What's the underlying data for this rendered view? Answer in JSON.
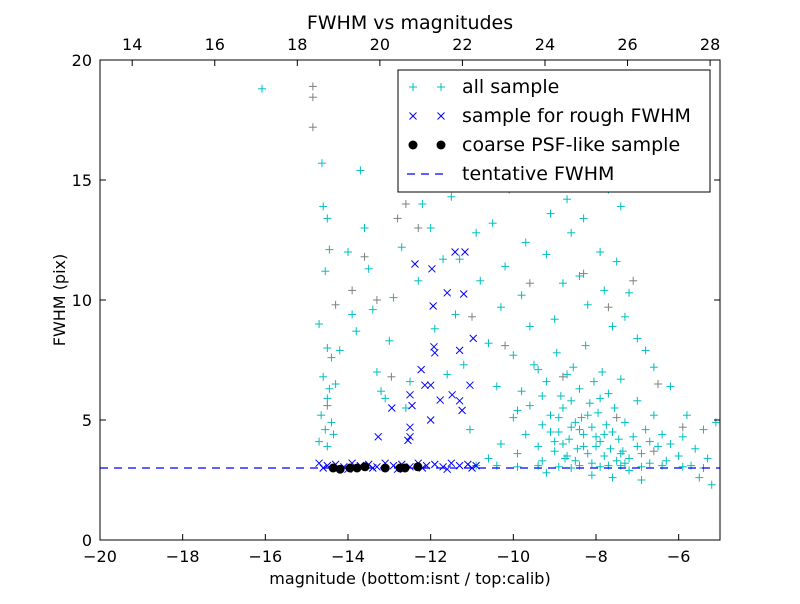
{
  "chart_data": {
    "type": "scatter",
    "title": "FWHM vs magnitudes",
    "xlabel": "magnitude (bottom:isnt / top:calib)",
    "ylabel": "FWHM (pix)",
    "xlim": [
      -20,
      -5
    ],
    "ylim": [
      0,
      20
    ],
    "xticks": [
      -20,
      -18,
      -16,
      -14,
      -12,
      -10,
      -8,
      -6
    ],
    "xtick_labels": [
      "−20",
      "−18",
      "−16",
      "−14",
      "−12",
      "−10",
      "−8",
      "−6"
    ],
    "yticks": [
      0,
      5,
      10,
      15,
      20
    ],
    "ytick_labels": [
      "0",
      "5",
      "10",
      "15",
      "20"
    ],
    "top_xlim": [
      13.22,
      28.24
    ],
    "top_xticks": [
      14,
      16,
      18,
      20,
      22,
      24,
      26,
      28
    ],
    "top_xtick_labels": [
      "14",
      "16",
      "18",
      "20",
      "22",
      "24",
      "26",
      "28"
    ],
    "grid": false,
    "legend_position": "top-right",
    "colors": {
      "all": "#00bfbf",
      "gray": "#808080",
      "rough": "#0000ff",
      "coarse": "#000000",
      "line": "#0000ff"
    },
    "series": [
      {
        "name": "all sample",
        "marker": "+",
        "color": "#00bfbf",
        "points": [
          [
            -16.08,
            18.8
          ],
          [
            -14.63,
            15.7
          ],
          [
            -14.6,
            13.9
          ],
          [
            -14.5,
            13.4
          ],
          [
            -14.45,
            12.1
          ],
          [
            -14.55,
            11.2
          ],
          [
            -14.7,
            9.0
          ],
          [
            -14.5,
            8.0
          ],
          [
            -14.4,
            7.6
          ],
          [
            -14.6,
            6.8
          ],
          [
            -14.45,
            6.3
          ],
          [
            -14.5,
            5.9
          ],
          [
            -14.65,
            5.2
          ],
          [
            -14.4,
            4.9
          ],
          [
            -14.55,
            4.6
          ],
          [
            -14.7,
            4.1
          ],
          [
            -14.5,
            3.9
          ],
          [
            -14.35,
            4.4
          ],
          [
            -14.3,
            6.5
          ],
          [
            -14.2,
            7.9
          ],
          [
            -14.0,
            12.0
          ],
          [
            -13.9,
            9.4
          ],
          [
            -13.8,
            8.7
          ],
          [
            -13.7,
            15.4
          ],
          [
            -13.6,
            13.0
          ],
          [
            -13.5,
            11.3
          ],
          [
            -13.4,
            9.6
          ],
          [
            -13.3,
            7.0
          ],
          [
            -13.2,
            6.2
          ],
          [
            -13.1,
            5.9
          ],
          [
            -13.0,
            8.3
          ],
          [
            -12.9,
            10.1
          ],
          [
            -12.7,
            12.2
          ],
          [
            -12.6,
            5.5
          ],
          [
            -12.5,
            6.6
          ],
          [
            -12.3,
            10.8
          ],
          [
            -12.2,
            14.0
          ],
          [
            -12.0,
            13.0
          ],
          [
            -11.9,
            8.8
          ],
          [
            -11.7,
            11.7
          ],
          [
            -11.6,
            6.9
          ],
          [
            -11.5,
            14.3
          ],
          [
            -11.4,
            9.4
          ],
          [
            -11.3,
            11.7
          ],
          [
            -11.2,
            7.3
          ],
          [
            -11.05,
            4.6
          ],
          [
            -10.9,
            12.8
          ],
          [
            -10.8,
            10.8
          ],
          [
            -10.6,
            8.2
          ],
          [
            -10.5,
            13.2
          ],
          [
            -10.4,
            6.4
          ],
          [
            -10.3,
            9.7
          ],
          [
            -10.2,
            11.4
          ],
          [
            -10.1,
            14.6
          ],
          [
            -10.0,
            7.7
          ],
          [
            -9.9,
            5.4
          ],
          [
            -9.8,
            10.2
          ],
          [
            -9.7,
            12.4
          ],
          [
            -9.6,
            8.9
          ],
          [
            -9.5,
            15.8
          ],
          [
            -9.4,
            7.1
          ],
          [
            -9.3,
            6.0
          ],
          [
            -9.2,
            11.9
          ],
          [
            -9.1,
            13.6
          ],
          [
            -9.0,
            9.2
          ],
          [
            -8.9,
            17.5
          ],
          [
            -8.8,
            10.7
          ],
          [
            -8.7,
            14.2
          ],
          [
            -8.6,
            12.8
          ],
          [
            -8.5,
            16.4
          ],
          [
            -8.4,
            11.0
          ],
          [
            -8.3,
            13.4
          ],
          [
            -8.2,
            9.8
          ],
          [
            -8.1,
            15.1
          ],
          [
            -8.0,
            19.4
          ],
          [
            -7.9,
            12.0
          ],
          [
            -7.8,
            10.4
          ],
          [
            -7.7,
            14.6
          ],
          [
            -7.6,
            8.9
          ],
          [
            -7.5,
            11.6
          ],
          [
            -7.4,
            13.9
          ],
          [
            -7.3,
            9.3
          ],
          [
            -7.2,
            10.3
          ],
          [
            -7.0,
            8.4
          ],
          [
            -6.8,
            7.9
          ],
          [
            -6.6,
            7.2
          ],
          [
            -6.2,
            6.4
          ],
          [
            -5.8,
            5.2
          ],
          [
            -5.4,
            4.6
          ],
          [
            -5.1,
            4.9
          ],
          [
            -10.6,
            3.4
          ],
          [
            -10.3,
            4.0
          ],
          [
            -10.0,
            5.1
          ],
          [
            -9.9,
            3.6
          ],
          [
            -9.8,
            6.2
          ],
          [
            -9.7,
            4.4
          ],
          [
            -9.6,
            5.6
          ],
          [
            -9.5,
            7.3
          ],
          [
            -9.4,
            3.9
          ],
          [
            -9.3,
            4.8
          ],
          [
            -9.2,
            6.6
          ],
          [
            -9.1,
            5.2
          ],
          [
            -9.0,
            3.7
          ],
          [
            -8.95,
            7.8
          ],
          [
            -8.9,
            4.5
          ],
          [
            -8.85,
            6.0
          ],
          [
            -8.8,
            5.5
          ],
          [
            -8.75,
            3.4
          ],
          [
            -8.7,
            6.9
          ],
          [
            -8.65,
            4.2
          ],
          [
            -8.6,
            5.8
          ],
          [
            -8.55,
            7.2
          ],
          [
            -8.5,
            4.9
          ],
          [
            -8.45,
            3.8
          ],
          [
            -8.4,
            6.3
          ],
          [
            -8.35,
            5.1
          ],
          [
            -8.3,
            4.4
          ],
          [
            -8.25,
            8.1
          ],
          [
            -8.2,
            3.6
          ],
          [
            -8.15,
            5.7
          ],
          [
            -8.1,
            4.7
          ],
          [
            -8.05,
            6.6
          ],
          [
            -8.0,
            3.9
          ],
          [
            -7.95,
            5.3
          ],
          [
            -7.9,
            4.1
          ],
          [
            -7.85,
            7.0
          ],
          [
            -7.8,
            3.5
          ],
          [
            -7.75,
            4.8
          ],
          [
            -7.7,
            6.1
          ],
          [
            -7.65,
            3.8
          ],
          [
            -7.6,
            4.5
          ],
          [
            -7.55,
            5.5
          ],
          [
            -7.5,
            3.3
          ],
          [
            -7.45,
            4.2
          ],
          [
            -7.4,
            6.7
          ],
          [
            -7.35,
            3.7
          ],
          [
            -7.3,
            4.9
          ],
          [
            -7.2,
            3.4
          ],
          [
            -7.1,
            4.3
          ],
          [
            -7.0,
            5.8
          ],
          [
            -6.9,
            3.6
          ],
          [
            -6.8,
            4.6
          ],
          [
            -6.7,
            3.2
          ],
          [
            -6.6,
            5.2
          ],
          [
            -6.5,
            3.9
          ],
          [
            -6.4,
            4.4
          ],
          [
            -6.3,
            3.3
          ],
          [
            -6.2,
            4.0
          ],
          [
            -6.0,
            3.5
          ],
          [
            -5.9,
            4.3
          ],
          [
            -5.7,
            3.1
          ],
          [
            -5.6,
            3.8
          ],
          [
            -5.5,
            2.6
          ],
          [
            -5.3,
            3.4
          ],
          [
            -5.2,
            2.3
          ],
          [
            -7.6,
            2.6
          ],
          [
            -8.1,
            2.7
          ],
          [
            -6.9,
            2.5
          ],
          [
            -9.2,
            2.8
          ],
          [
            -8.6,
            3.0
          ],
          [
            -7.2,
            2.9
          ],
          [
            -9.3,
            3.3
          ],
          [
            -9.0,
            4.1
          ],
          [
            -8.7,
            3.5
          ],
          [
            -8.4,
            4.6
          ],
          [
            -8.1,
            3.2
          ],
          [
            -7.9,
            5.9
          ],
          [
            -7.7,
            3.1
          ],
          [
            -8.9,
            5.1
          ],
          [
            -8.6,
            4.7
          ],
          [
            -8.3,
            3.9
          ],
          [
            -8.0,
            4.3
          ],
          [
            -7.4,
            3.6
          ],
          [
            -7.0,
            3.9
          ],
          [
            -8.8,
            4.0
          ],
          [
            -8.5,
            3.3
          ],
          [
            -8.2,
            5.2
          ],
          [
            -9.1,
            4.5
          ],
          [
            -7.8,
            4.4
          ],
          [
            -7.3,
            3.2
          ],
          [
            -6.7,
            4.1
          ],
          [
            -10.9,
            3.1
          ],
          [
            -10.4,
            3.1
          ],
          [
            -9.9,
            3.05
          ],
          [
            -9.4,
            3.1
          ],
          [
            -8.9,
            3.05
          ],
          [
            -8.4,
            3.1
          ],
          [
            -7.9,
            3.05
          ],
          [
            -7.4,
            3.1
          ],
          [
            -6.9,
            3.05
          ],
          [
            -6.4,
            3.1
          ],
          [
            -5.9,
            3.05
          ],
          [
            -5.4,
            3.0
          ]
        ]
      },
      {
        "name": "",
        "marker": "+",
        "color": "#808080",
        "points": [
          [
            -14.85,
            18.9
          ],
          [
            -14.85,
            18.45
          ],
          [
            -14.85,
            17.2
          ],
          [
            -13.6,
            11.8
          ],
          [
            -13.3,
            10.0
          ],
          [
            -12.8,
            13.4
          ],
          [
            -12.6,
            14.0
          ],
          [
            -12.3,
            13.0
          ],
          [
            -11.0,
            9.3
          ],
          [
            -10.2,
            8.1
          ],
          [
            -9.6,
            10.7
          ],
          [
            -8.3,
            11.1
          ],
          [
            -7.7,
            9.7
          ],
          [
            -7.1,
            10.8
          ],
          [
            -6.5,
            6.5
          ],
          [
            -8.8,
            6.8
          ],
          [
            -7.5,
            5.1
          ],
          [
            -6.6,
            3.7
          ],
          [
            -5.9,
            4.7
          ],
          [
            -14.5,
            5.6
          ],
          [
            -14.3,
            9.8
          ],
          [
            -13.9,
            10.4
          ],
          [
            -12.95,
            6.8
          ]
        ]
      },
      {
        "name": "sample for rough FWHM",
        "marker": "x",
        "color": "#0000ff",
        "points": [
          [
            -12.38,
            11.5
          ],
          [
            -11.97,
            11.3
          ],
          [
            -11.41,
            12.0
          ],
          [
            -11.17,
            12.0
          ],
          [
            -11.2,
            10.25
          ],
          [
            -11.94,
            9.75
          ],
          [
            -11.6,
            10.3
          ],
          [
            -11.92,
            8.05
          ],
          [
            -11.9,
            7.8
          ],
          [
            -11.3,
            7.9
          ],
          [
            -10.97,
            8.4
          ],
          [
            -12.23,
            7.1
          ],
          [
            -12.14,
            6.45
          ],
          [
            -12.0,
            6.45
          ],
          [
            -12.5,
            6.05
          ],
          [
            -12.45,
            5.6
          ],
          [
            -12.94,
            5.5
          ],
          [
            -13.27,
            4.3
          ],
          [
            -12.5,
            4.7
          ],
          [
            -12.5,
            4.3
          ],
          [
            -12.0,
            5.0
          ],
          [
            -11.77,
            5.83
          ],
          [
            -11.48,
            6.05
          ],
          [
            -11.3,
            5.8
          ],
          [
            -11.05,
            6.45
          ],
          [
            -11.24,
            5.4
          ],
          [
            -12.55,
            4.15
          ],
          [
            -14.7,
            3.2
          ],
          [
            -14.5,
            3.1
          ],
          [
            -14.3,
            3.15
          ],
          [
            -14.1,
            3.05
          ],
          [
            -13.9,
            3.2
          ],
          [
            -13.7,
            3.1
          ],
          [
            -13.5,
            3.15
          ],
          [
            -13.3,
            3.05
          ],
          [
            -13.1,
            3.2
          ],
          [
            -12.9,
            3.1
          ],
          [
            -12.7,
            3.15
          ],
          [
            -12.5,
            3.05
          ],
          [
            -12.3,
            3.2
          ],
          [
            -12.1,
            3.1
          ],
          [
            -11.9,
            3.15
          ],
          [
            -11.7,
            3.05
          ],
          [
            -11.5,
            3.2
          ],
          [
            -11.3,
            3.1
          ],
          [
            -11.1,
            3.15
          ],
          [
            -10.9,
            3.1
          ],
          [
            -14.6,
            3.0
          ],
          [
            -14.0,
            2.95
          ],
          [
            -13.4,
            3.0
          ],
          [
            -12.8,
            2.95
          ],
          [
            -12.2,
            3.0
          ],
          [
            -11.6,
            2.95
          ],
          [
            -11.0,
            3.0
          ]
        ]
      },
      {
        "name": "coarse PSF-like sample",
        "marker": "o",
        "color": "#000000",
        "points": [
          [
            -14.36,
            3.0
          ],
          [
            -14.19,
            2.95
          ],
          [
            -13.95,
            3.0
          ],
          [
            -13.78,
            3.0
          ],
          [
            -13.59,
            3.05
          ],
          [
            -13.1,
            3.0
          ],
          [
            -12.74,
            3.0
          ],
          [
            -12.62,
            3.0
          ],
          [
            -12.31,
            3.05
          ]
        ]
      }
    ],
    "hline": {
      "name": "tentative FWHM",
      "y": 3.0,
      "style": "dashed",
      "color": "#0000ff"
    }
  }
}
